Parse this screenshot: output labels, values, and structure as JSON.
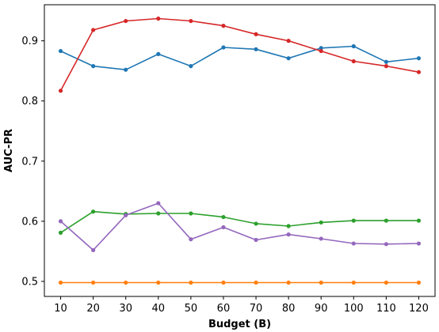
{
  "chart_data": {
    "type": "line",
    "title": "",
    "xlabel": "Budget (B)",
    "ylabel": "AUC-PR",
    "x": [
      10,
      20,
      30,
      40,
      50,
      60,
      70,
      80,
      90,
      100,
      110,
      120
    ],
    "xlim": [
      5,
      125
    ],
    "ylim": [
      0.475,
      0.96
    ],
    "xticks": [
      "10",
      "20",
      "30",
      "40",
      "50",
      "60",
      "70",
      "80",
      "90",
      "100",
      "110",
      "120"
    ],
    "yticks": [
      {
        "value": 0.5,
        "label": "0.5"
      },
      {
        "value": 0.6,
        "label": "0.6"
      },
      {
        "value": 0.7,
        "label": "0.7"
      },
      {
        "value": 0.8,
        "label": "0.8"
      },
      {
        "value": 0.9,
        "label": "0.9"
      }
    ],
    "grid": false,
    "legend": "none",
    "series": [
      {
        "color": "#1f77b4",
        "values": [
          0.883,
          0.858,
          0.852,
          0.878,
          0.858,
          0.889,
          0.886,
          0.871,
          0.888,
          0.891,
          0.865,
          0.871
        ]
      },
      {
        "color": "#d62728",
        "values": [
          0.817,
          0.918,
          0.933,
          0.937,
          0.933,
          0.925,
          0.911,
          0.9,
          0.883,
          0.866,
          0.858,
          0.848
        ]
      },
      {
        "color": "#2ca02c",
        "values": [
          0.581,
          0.616,
          0.612,
          0.613,
          0.613,
          0.607,
          0.596,
          0.592,
          0.598,
          0.601,
          0.601,
          0.601
        ]
      },
      {
        "color": "#9467bd",
        "values": [
          0.6,
          0.552,
          0.61,
          0.63,
          0.57,
          0.59,
          0.569,
          0.578,
          0.571,
          0.563,
          0.562,
          0.563
        ]
      },
      {
        "color": "#ff7f0e",
        "values": [
          0.498,
          0.498,
          0.498,
          0.498,
          0.498,
          0.498,
          0.498,
          0.498,
          0.498,
          0.498,
          0.498,
          0.498
        ]
      }
    ]
  }
}
